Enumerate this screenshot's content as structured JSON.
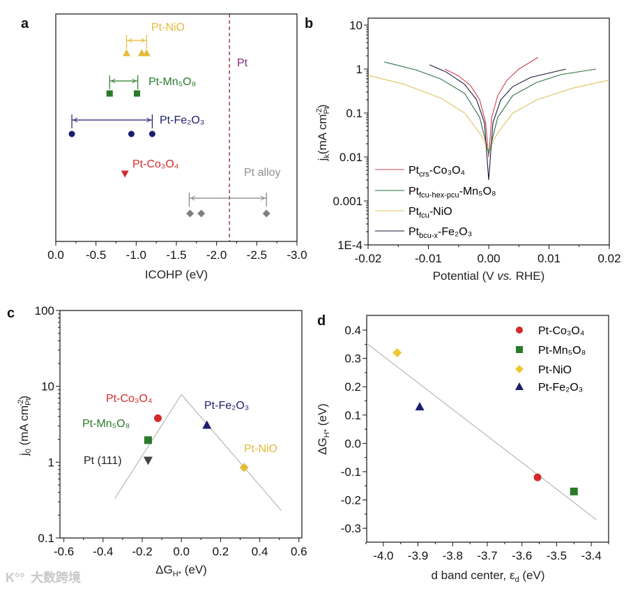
{
  "panel_letters": [
    "a",
    "b",
    "c",
    "d"
  ],
  "watermark": {
    "logo": "K°°",
    "text": "大数跨境"
  },
  "colors": {
    "red": "#d42a2a",
    "green": "#2a7a2a",
    "navy": "#1c1c6e",
    "yellow": "#e6b93a",
    "gray": "#808080",
    "purple": "#7a2a7a",
    "dark": "#444444"
  },
  "chart_data": [
    {
      "panel": "a",
      "type": "scatter",
      "xlabel": "ICOHP (eV)",
      "xlim": [
        0,
        -3
      ],
      "xticks": [
        0,
        -0.5,
        -1,
        -1.5,
        -2,
        -2.5,
        -3
      ],
      "xtick_labels": [
        "0.0",
        "-0.5",
        "-1.0",
        "-1.5",
        "-2.0",
        "-2.5",
        "-3.0"
      ],
      "reference": {
        "label": "Pt",
        "value": -2.16,
        "color": "#7a2a7a"
      },
      "series": [
        {
          "name": "Pt-NiO",
          "values": [
            -0.88,
            -1.07,
            -1.13
          ],
          "range": [
            -0.88,
            -1.13
          ],
          "marker": "triangle",
          "color": "#e6b93a"
        },
        {
          "name": "Pt-Mn₅O₈",
          "values": [
            -0.67,
            -1.01
          ],
          "range": [
            -0.67,
            -1.02
          ],
          "marker": "square",
          "color": "#2a7a2a"
        },
        {
          "name": "Pt-Fe₂O₃",
          "values": [
            -0.2,
            -0.94,
            -1.2
          ],
          "range": [
            -0.2,
            -1.2
          ],
          "marker": "circle",
          "color": "#1c1c6e"
        },
        {
          "name": "Pt-Co₃O₄",
          "values": [
            -0.86
          ],
          "range": null,
          "marker": "down-triangle",
          "color": "#d42a2a"
        },
        {
          "name": "Pt alloy",
          "values": [
            -1.67,
            -1.81,
            -2.62
          ],
          "range": [
            -1.66,
            -2.62
          ],
          "marker": "diamond",
          "color": "#808080"
        }
      ]
    },
    {
      "panel": "b",
      "type": "line",
      "xlabel": {
        "main": "Potential (V ",
        "italic": "vs.",
        "rest": " RHE)"
      },
      "ylabel": {
        "main": "j",
        "sub": "k",
        "unit": "(mA cm",
        "unit_sub": "Pt",
        "unit_sup": "-2",
        "close": ")"
      },
      "xlim": [
        -0.02,
        0.02
      ],
      "ylim": [
        0.0001,
        14.4
      ],
      "yscale": "log",
      "xticks": [
        -0.02,
        -0.01,
        0,
        0.01,
        0.02
      ],
      "xtick_labels": [
        "-0.02",
        "-0.01",
        "0.00",
        "0.01",
        "0.02"
      ],
      "yticks": [
        10,
        1,
        0.1,
        0.01,
        0.001,
        0.0001
      ],
      "ytick_labels": [
        "10",
        "1",
        "0.1",
        "0.01",
        "0.001",
        "1E-4"
      ],
      "legend_position": "bottom-left",
      "series": [
        {
          "legend": {
            "base": "Pt",
            "sub": "crs",
            "rest": "-Co₃O₄"
          },
          "color": "#c8404f",
          "points": [
            [
              -0.0073,
              1.0
            ],
            [
              -0.005,
              0.7
            ],
            [
              -0.003,
              0.42
            ],
            [
              -0.0015,
              0.2
            ],
            [
              -0.0005,
              0.06
            ],
            [
              0,
              0.01
            ],
            [
              0.0005,
              0.08
            ],
            [
              0.0015,
              0.25
            ],
            [
              0.003,
              0.55
            ],
            [
              0.005,
              1.0
            ],
            [
              0.0082,
              1.85
            ]
          ]
        },
        {
          "legend": {
            "base": "Pt",
            "sub": "fcu-hex-pcu",
            "rest": "-Mn₅O₈"
          },
          "color": "#2f6e44",
          "points": [
            [
              -0.0173,
              1.45
            ],
            [
              -0.012,
              0.95
            ],
            [
              -0.008,
              0.6
            ],
            [
              -0.004,
              0.28
            ],
            [
              -0.0015,
              0.08
            ],
            [
              0,
              0.012
            ],
            [
              0.0015,
              0.08
            ],
            [
              0.004,
              0.25
            ],
            [
              0.008,
              0.5
            ],
            [
              0.012,
              0.75
            ],
            [
              0.0178,
              1.0
            ]
          ]
        },
        {
          "legend": {
            "base": "Pt",
            "sub": "fcu",
            "rest": "-NiO"
          },
          "color": "#e0c060",
          "points": [
            [
              -0.02,
              0.72
            ],
            [
              -0.014,
              0.45
            ],
            [
              -0.008,
              0.22
            ],
            [
              -0.004,
              0.1
            ],
            [
              -0.0015,
              0.035
            ],
            [
              0,
              0.015
            ],
            [
              0.0015,
              0.035
            ],
            [
              0.004,
              0.1
            ],
            [
              0.008,
              0.2
            ],
            [
              0.014,
              0.37
            ],
            [
              0.02,
              0.56
            ]
          ]
        },
        {
          "legend": {
            "base": "Pt",
            "sub": "bcu-x",
            "rest": "-Fe₂O₃"
          },
          "color": "#1a1a3a",
          "points": [
            [
              -0.0098,
              1.25
            ],
            [
              -0.007,
              0.85
            ],
            [
              -0.004,
              0.45
            ],
            [
              -0.002,
              0.2
            ],
            [
              -0.0007,
              0.06
            ],
            [
              0,
              0.003
            ],
            [
              0.0007,
              0.06
            ],
            [
              0.002,
              0.2
            ],
            [
              0.004,
              0.4
            ],
            [
              0.007,
              0.65
            ],
            [
              0.0128,
              1.0
            ]
          ]
        }
      ]
    },
    {
      "panel": "c",
      "type": "scatter",
      "xlabel": {
        "main": "ΔG",
        "sub": "H*",
        "rest": " (eV)"
      },
      "ylabel": {
        "main": "j",
        "sub": "0",
        "unit": " (mA cm",
        "unit_sub": "Pt",
        "unit_sup": "-2",
        "close": ")"
      },
      "xlim": [
        -0.62,
        0.615
      ],
      "ylim": [
        0.1,
        100
      ],
      "yscale": "log",
      "xticks": [
        -0.6,
        -0.4,
        -0.2,
        0,
        0.2,
        0.4,
        0.6
      ],
      "xtick_labels": [
        "-0.6",
        "-0.4",
        "-0.2",
        "0.0",
        "0.2",
        "0.4",
        "0.6"
      ],
      "yticks": [
        100,
        10,
        1,
        0.1
      ],
      "ytick_labels": [
        "100",
        "10",
        "1",
        "0.1"
      ],
      "volcano_line": [
        [
          -0.34,
          0.33
        ],
        [
          0,
          7.8
        ],
        [
          0.51,
          0.23
        ]
      ],
      "points": [
        {
          "name": "Pt-Co₃O₄",
          "x": -0.12,
          "y": 3.8,
          "marker": "circle",
          "color": "#d42a2a"
        },
        {
          "name": "Pt-Mn₅O₈",
          "x": -0.17,
          "y": 1.95,
          "marker": "square",
          "color": "#2a7a2a"
        },
        {
          "name": "Pt (111)",
          "x": -0.17,
          "y": 1.05,
          "marker": "down-triangle",
          "color": "#444444"
        },
        {
          "name": "Pt-Fe₂O₃",
          "x": 0.13,
          "y": 3.1,
          "marker": "triangle",
          "color": "#1c1c6e"
        },
        {
          "name": "Pt-NiO",
          "x": 0.32,
          "y": 0.85,
          "marker": "diamond",
          "color": "#e6b93a"
        }
      ]
    },
    {
      "panel": "d",
      "type": "scatter",
      "xlabel": {
        "main": "d band center, ε",
        "sub": "d",
        "rest": " (eV)"
      },
      "ylabel": {
        "main": "ΔG",
        "sub": "H*",
        "rest": " (eV)"
      },
      "xlim": [
        -4.048,
        -3.35
      ],
      "ylim": [
        -0.349,
        0.452
      ],
      "xticks": [
        -4.0,
        -3.9,
        -3.8,
        -3.7,
        -3.6,
        -3.5,
        -3.4
      ],
      "xtick_labels": [
        "-4.0",
        "-3.9",
        "-3.8",
        "-3.7",
        "-3.6",
        "-3.5",
        "-3.4"
      ],
      "yticks": [
        0.4,
        0.3,
        0.2,
        0.1,
        0,
        -0.1,
        -0.2,
        -0.3
      ],
      "ytick_labels": [
        "0.4",
        "0.3",
        "0.2",
        "0.1",
        "0.0",
        "-0.1",
        "-0.2",
        "-0.3"
      ],
      "fit_line": [
        [
          -4.05,
          0.355
        ],
        [
          -3.385,
          -0.27
        ]
      ],
      "legend_position": "top-right",
      "points": [
        {
          "name": "Pt-Co₃O₄",
          "x": -3.555,
          "y": -0.12,
          "marker": "circle",
          "color": "#d42a2a"
        },
        {
          "name": "Pt-Mn₅O₈",
          "x": -3.45,
          "y": -0.17,
          "marker": "square",
          "color": "#2a7a2a"
        },
        {
          "name": "Pt-NiO",
          "x": -3.96,
          "y": 0.32,
          "marker": "diamond",
          "color": "#f0c830"
        },
        {
          "name": "Pt-Fe₂O₃",
          "x": -3.895,
          "y": 0.13,
          "marker": "triangle",
          "color": "#1c1c6e"
        }
      ]
    }
  ]
}
